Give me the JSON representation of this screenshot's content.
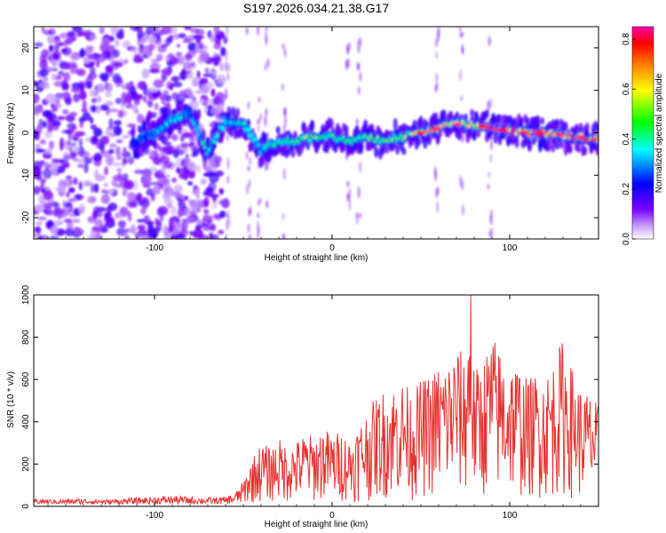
{
  "page_title": "S197.2026.034.21.38.G17",
  "colors": {
    "snr_line": "#e8312f",
    "background": "#ffffff",
    "axis": "#000000"
  },
  "chart_data": [
    {
      "type": "heatmap",
      "title": "S197.2026.034.21.38.G17",
      "xlabel": "Height of straight line (km)",
      "ylabel": "Frequency (Hz)",
      "xlim": [
        -168,
        150
      ],
      "ylim": [
        -25,
        25
      ],
      "xticks": [
        -100,
        0,
        100
      ],
      "yticks": [
        -20,
        -10,
        0,
        10,
        20
      ],
      "xtick_labels": [
        "-100",
        "0",
        "100"
      ],
      "ytick_labels": [
        "-20",
        "-10",
        "0",
        "10",
        "20"
      ],
      "colorbar": {
        "label": "Normalized spectral amplitude",
        "range": [
          0.0,
          0.85
        ],
        "ticks": [
          0.0,
          0.2,
          0.4,
          0.6,
          0.8
        ],
        "tick_labels": [
          "0.0",
          "0.2",
          "0.4",
          "0.6",
          "0.8"
        ],
        "colormap": [
          "#ffffff",
          "#7a00ff",
          "#0000ff",
          "#00ffff",
          "#00ff00",
          "#ffff00",
          "#ff8000",
          "#ff0000",
          "#ff00aa"
        ]
      },
      "ridge": {
        "x": [
          -110,
          -100,
          -90,
          -80,
          -70,
          -60,
          -50,
          -40,
          -30,
          -20,
          -10,
          0,
          10,
          20,
          30,
          40,
          50,
          60,
          70,
          80,
          90,
          100,
          110,
          120,
          130,
          140,
          148
        ],
        "y": [
          -2,
          0,
          3,
          5,
          -5,
          3,
          2,
          -4,
          -2,
          -2,
          -1,
          -1,
          -2,
          -1,
          -2,
          -1,
          0,
          1,
          2,
          2,
          1,
          0.5,
          0,
          0,
          -0.5,
          -1,
          -1.5
        ],
        "amplitude": [
          0.25,
          0.3,
          0.4,
          0.35,
          0.4,
          0.35,
          0.4,
          0.35,
          0.45,
          0.5,
          0.55,
          0.5,
          0.45,
          0.5,
          0.5,
          0.55,
          0.65,
          0.7,
          0.6,
          0.6,
          0.8,
          0.85,
          0.8,
          0.85,
          0.8,
          0.8,
          0.75
        ]
      },
      "noise_region": {
        "x_from": -168,
        "x_to": -70,
        "level": 0.1
      }
    },
    {
      "type": "line",
      "xlabel": "Height of straight line (km)",
      "ylabel": "SNR (10 * v/v)",
      "xlim": [
        -168,
        150
      ],
      "ylim": [
        0,
        1000
      ],
      "xticks": [
        -100,
        0,
        100
      ],
      "yticks": [
        0,
        200,
        400,
        600,
        800,
        1000
      ],
      "xtick_labels": [
        "-100",
        "0",
        "100"
      ],
      "ytick_labels": [
        "0",
        "200",
        "400",
        "600",
        "800",
        "1000"
      ],
      "series": [
        {
          "name": "SNR",
          "x": [
            -168,
            -155,
            -140,
            -125,
            -110,
            -100,
            -90,
            -80,
            -70,
            -60,
            -55,
            -50,
            -45,
            -40,
            -35,
            -30,
            -25,
            -20,
            -15,
            -10,
            -5,
            0,
            5,
            10,
            15,
            20,
            25,
            30,
            35,
            40,
            45,
            50,
            55,
            60,
            65,
            70,
            75,
            78,
            80,
            85,
            90,
            95,
            100,
            105,
            110,
            115,
            120,
            125,
            130,
            135,
            140,
            145,
            150
          ],
          "values": [
            30,
            25,
            30,
            25,
            35,
            40,
            45,
            40,
            35,
            40,
            60,
            120,
            230,
            300,
            280,
            320,
            290,
            310,
            350,
            330,
            380,
            340,
            360,
            320,
            390,
            460,
            520,
            560,
            580,
            600,
            540,
            600,
            620,
            680,
            700,
            760,
            720,
            1000,
            640,
            700,
            820,
            740,
            700,
            680,
            600,
            640,
            620,
            700,
            800,
            660,
            560,
            540,
            480
          ]
        }
      ]
    }
  ]
}
